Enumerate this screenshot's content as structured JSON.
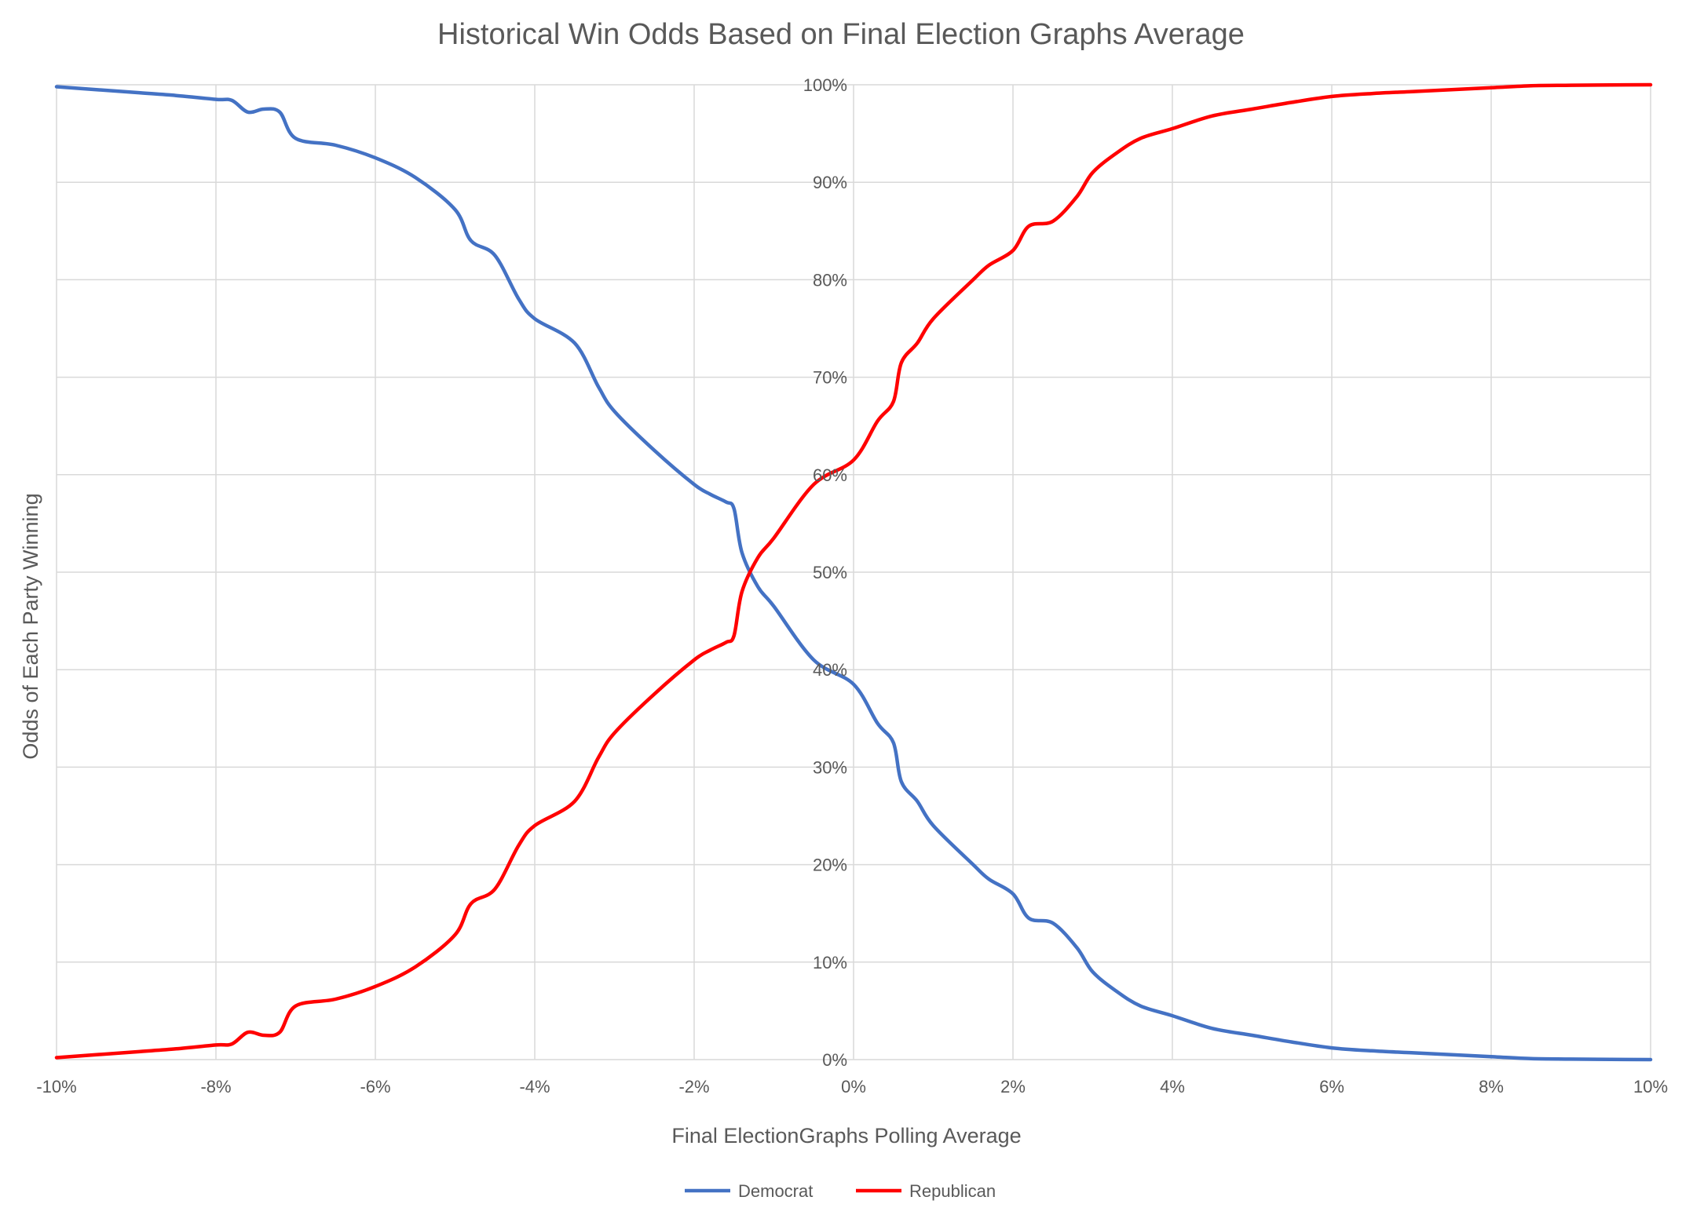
{
  "chart_data": {
    "type": "line",
    "title": "Historical Win Odds Based on Final Election Graphs Average",
    "xlabel": "Final ElectionGraphs Polling Average",
    "ylabel": "Odds of Each Party Winning",
    "xlim": [
      -10,
      10
    ],
    "ylim": [
      0,
      100
    ],
    "x_ticks": [
      -10,
      -8,
      -6,
      -4,
      -2,
      0,
      2,
      4,
      6,
      8,
      10
    ],
    "x_tick_labels": [
      "-10%",
      "-8%",
      "-6%",
      "-4%",
      "-2%",
      "0%",
      "2%",
      "4%",
      "6%",
      "8%",
      "10%"
    ],
    "y_ticks": [
      0,
      10,
      20,
      30,
      40,
      50,
      60,
      70,
      80,
      90,
      100
    ],
    "y_tick_labels": [
      "0%",
      "10%",
      "20%",
      "30%",
      "40%",
      "50%",
      "60%",
      "70%",
      "80%",
      "90%",
      "100%"
    ],
    "grid": true,
    "legend_position": "bottom",
    "x": [
      -10,
      -9.5,
      -9,
      -8.5,
      -8,
      -7.8,
      -7.6,
      -7.4,
      -7.2,
      -7.0,
      -6.5,
      -6.0,
      -5.5,
      -5.0,
      -4.8,
      -4.5,
      -4.2,
      -4.0,
      -3.5,
      -3.2,
      -3.0,
      -2.5,
      -2.0,
      -1.8,
      -1.6,
      -1.5,
      -1.4,
      -1.2,
      -1.0,
      -0.5,
      0,
      0.3,
      0.5,
      0.6,
      0.8,
      1.0,
      1.5,
      1.7,
      2.0,
      2.2,
      2.5,
      2.8,
      3.0,
      3.3,
      3.6,
      4.0,
      4.5,
      5.0,
      5.5,
      6.0,
      6.5,
      7.0,
      7.5,
      8.0,
      8.5,
      9.0,
      9.5,
      10
    ],
    "series": [
      {
        "name": "Democrat",
        "color": "#4472c4",
        "values": [
          99.8,
          99.5,
          99.2,
          98.9,
          98.5,
          98.4,
          97.2,
          97.5,
          97.2,
          94.5,
          93.8,
          92.5,
          90.5,
          87.2,
          84.0,
          82.5,
          78.0,
          76.0,
          73.5,
          69.0,
          66.5,
          62.5,
          59.0,
          58.0,
          57.2,
          56.5,
          52.0,
          48.5,
          46.5,
          41.0,
          38.5,
          34.5,
          32.5,
          28.5,
          26.5,
          24.0,
          20.0,
          18.5,
          17.0,
          14.5,
          14.0,
          11.5,
          9.0,
          7.0,
          5.5,
          4.5,
          3.2,
          2.5,
          1.8,
          1.2,
          0.9,
          0.7,
          0.5,
          0.3,
          0.1,
          0.05,
          0.02,
          0.0
        ]
      },
      {
        "name": "Republican",
        "color": "#ff0000",
        "values": [
          0.2,
          0.5,
          0.8,
          1.1,
          1.5,
          1.6,
          2.8,
          2.5,
          2.8,
          5.5,
          6.2,
          7.5,
          9.5,
          12.8,
          16.0,
          17.5,
          22.0,
          24.0,
          26.5,
          31.0,
          33.5,
          37.5,
          41.0,
          42.0,
          42.8,
          43.5,
          48.0,
          51.5,
          53.5,
          59.0,
          61.5,
          65.5,
          67.5,
          71.5,
          73.5,
          76.0,
          80.0,
          81.5,
          83.0,
          85.5,
          86.0,
          88.5,
          91.0,
          93.0,
          94.5,
          95.5,
          96.8,
          97.5,
          98.2,
          98.8,
          99.1,
          99.3,
          99.5,
          99.7,
          99.9,
          99.95,
          99.98,
          100.0
        ]
      }
    ]
  }
}
